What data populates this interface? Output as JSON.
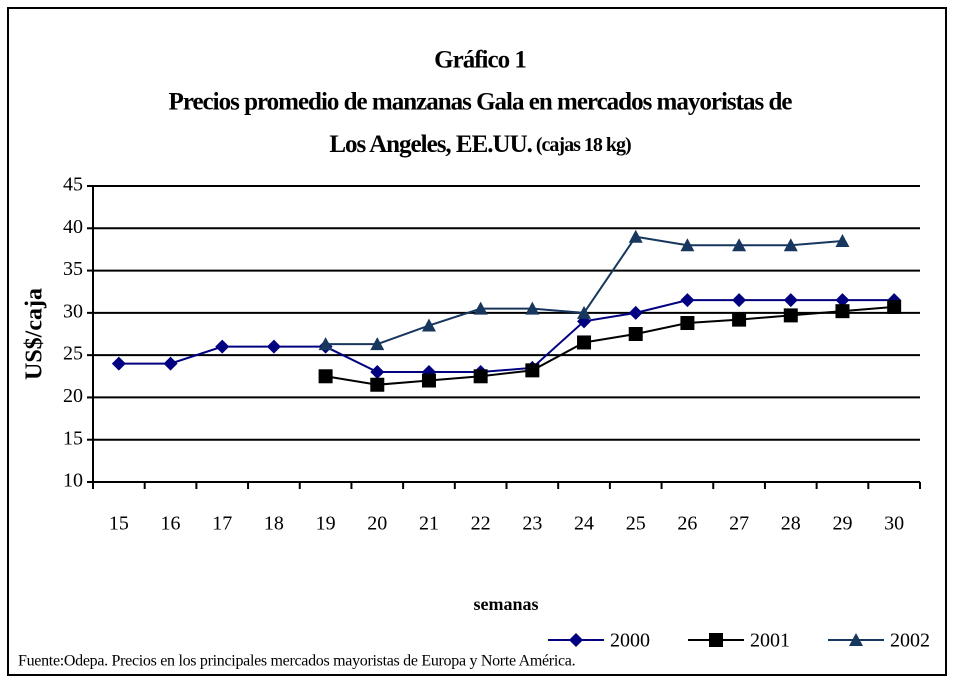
{
  "chart_data": {
    "type": "line",
    "title": [
      "Gráfico 1",
      "Precios promedio de manzanas Gala en mercados mayoristas de",
      "Los Angeles, EE.UU."
    ],
    "title_note": "(cajas 18 kg)",
    "x_label": "semanas",
    "y_label": "US$/caja",
    "categories": [
      "15",
      "16",
      "17",
      "18",
      "19",
      "20",
      "21",
      "22",
      "23",
      "24",
      "25",
      "26",
      "27",
      "28",
      "29",
      "30"
    ],
    "series": [
      {
        "name": "2000",
        "color": "#000080",
        "marker": "diamond",
        "values": [
          24,
          24,
          26,
          26,
          26,
          23,
          23,
          23,
          23.5,
          29,
          30,
          31.5,
          31.5,
          31.5,
          31.5,
          31.5
        ]
      },
      {
        "name": "2001",
        "color": "#000000",
        "marker": "square",
        "values": [
          null,
          null,
          null,
          null,
          22.5,
          21.5,
          22,
          22.5,
          23.2,
          26.5,
          27.5,
          28.8,
          29.2,
          29.7,
          30.2,
          30.7
        ]
      },
      {
        "name": "2002",
        "color": "#17375e",
        "marker": "triangle",
        "values": [
          null,
          null,
          null,
          null,
          26.3,
          26.3,
          28.5,
          30.5,
          30.5,
          30,
          39,
          38,
          38,
          38,
          38.5,
          null
        ]
      }
    ],
    "ylim": [
      10,
      45
    ],
    "yticks": [
      10,
      15,
      20,
      25,
      30,
      35,
      40,
      45
    ],
    "grid": true,
    "legend": "bottom-right",
    "source": "Fuente:Odepa. Precios en los principales mercados mayoristas de Europa y Norte América."
  }
}
